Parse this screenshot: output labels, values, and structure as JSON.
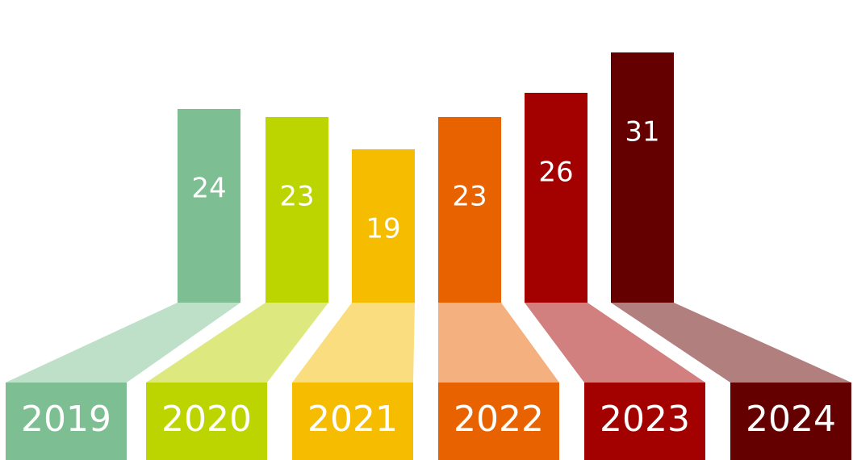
{
  "chart_data": {
    "type": "bar",
    "categories": [
      "2019",
      "2020",
      "2021",
      "2022",
      "2023",
      "2024"
    ],
    "values": [
      24,
      23,
      19,
      23,
      26,
      31
    ],
    "colors": [
      "#7dbf92",
      "#bcd400",
      "#f6bc00",
      "#e96200",
      "#a30000",
      "#650000"
    ]
  }
}
